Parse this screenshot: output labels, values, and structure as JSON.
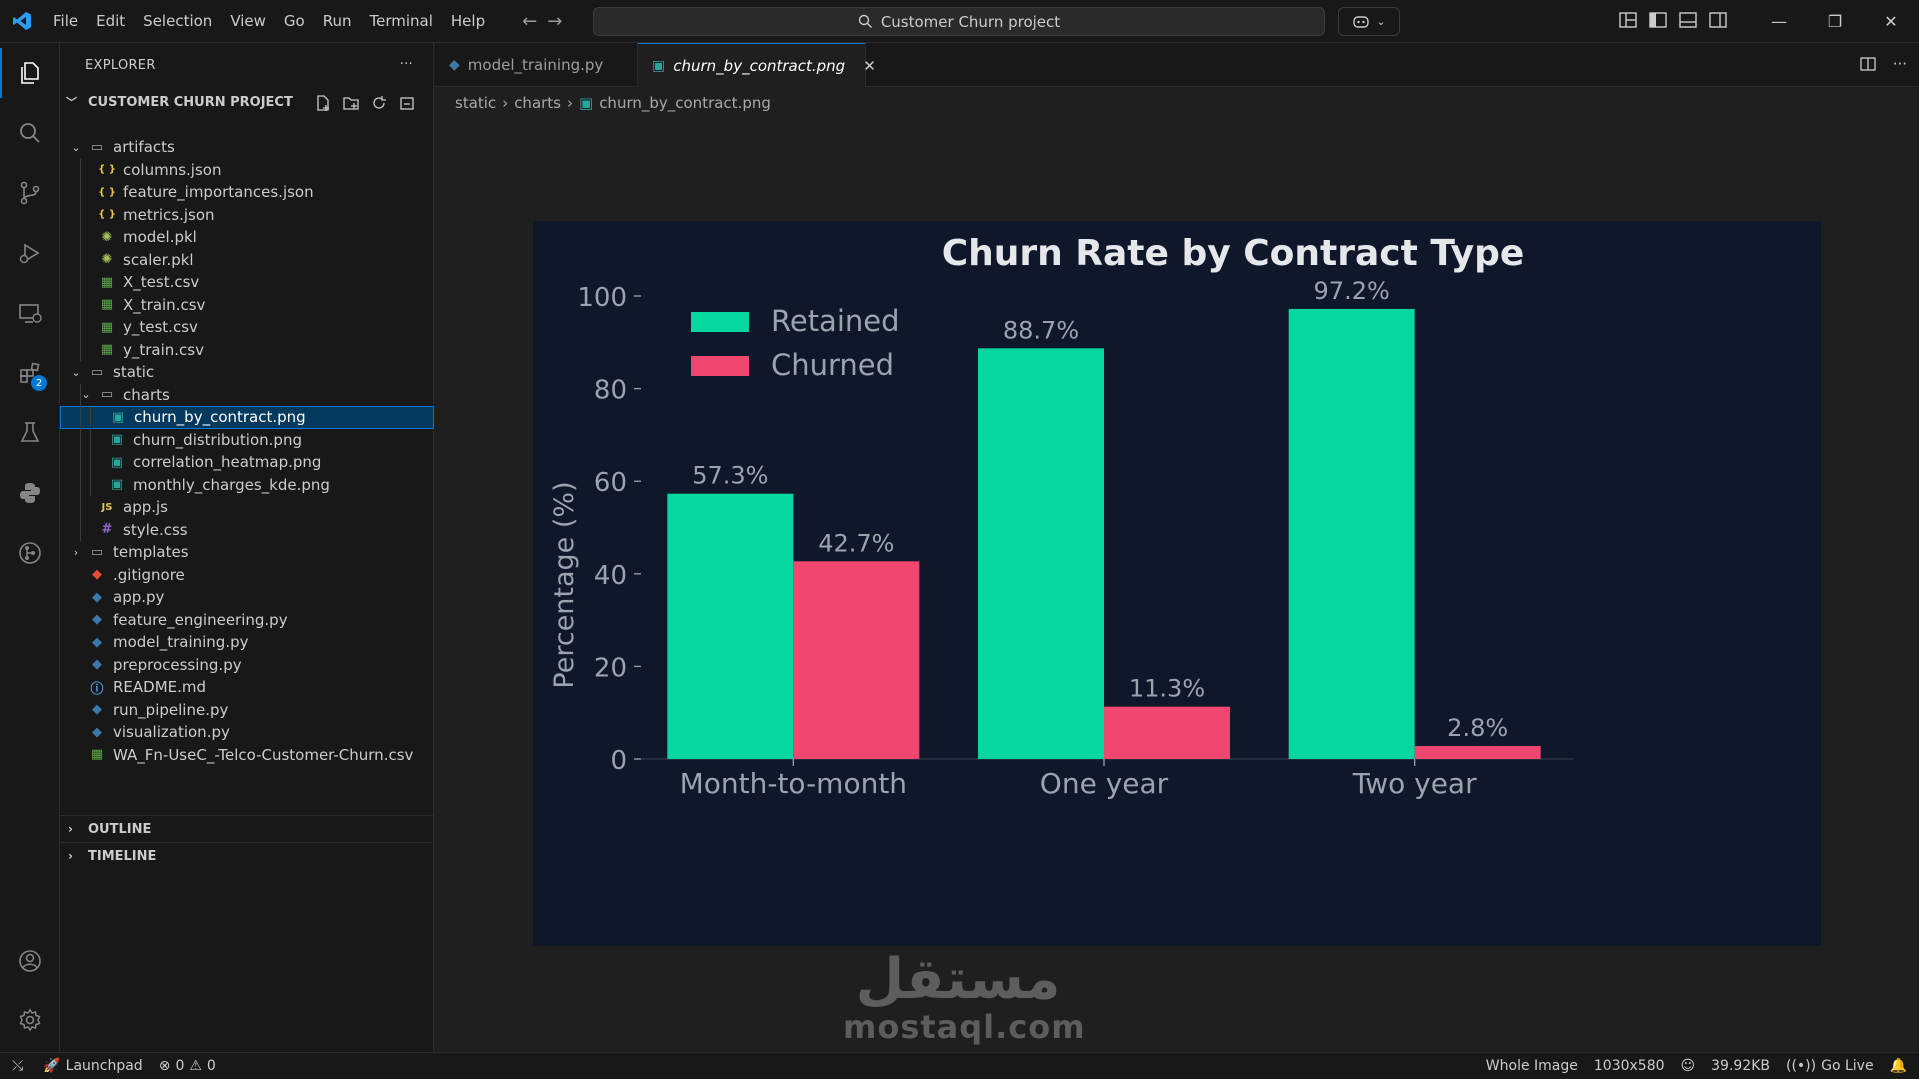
{
  "menu": [
    "File",
    "Edit",
    "Selection",
    "View",
    "Go",
    "Run",
    "Terminal",
    "Help"
  ],
  "search": {
    "text": "Customer Churn project"
  },
  "explorer": {
    "title": "EXPLORER",
    "project": "CUSTOMER CHURN PROJECT",
    "items": [
      {
        "label": "artifacts",
        "kind": "folder-open",
        "depth": 1
      },
      {
        "label": "columns.json",
        "kind": "json",
        "depth": 2
      },
      {
        "label": "feature_importances.json",
        "kind": "json",
        "depth": 2
      },
      {
        "label": "metrics.json",
        "kind": "json",
        "depth": 2
      },
      {
        "label": "model.pkl",
        "kind": "pkl",
        "depth": 2
      },
      {
        "label": "scaler.pkl",
        "kind": "pkl",
        "depth": 2
      },
      {
        "label": "X_test.csv",
        "kind": "csv",
        "depth": 2
      },
      {
        "label": "X_train.csv",
        "kind": "csv",
        "depth": 2
      },
      {
        "label": "y_test.csv",
        "kind": "csv",
        "depth": 2
      },
      {
        "label": "y_train.csv",
        "kind": "csv",
        "depth": 2
      },
      {
        "label": "static",
        "kind": "folder-open",
        "depth": 1
      },
      {
        "label": "charts",
        "kind": "folder-open",
        "depth": 2
      },
      {
        "label": "churn_by_contract.png",
        "kind": "png",
        "depth": 3,
        "selected": true
      },
      {
        "label": "churn_distribution.png",
        "kind": "png",
        "depth": 3
      },
      {
        "label": "correlation_heatmap.png",
        "kind": "png",
        "depth": 3
      },
      {
        "label": "monthly_charges_kde.png",
        "kind": "png",
        "depth": 3
      },
      {
        "label": "app.js",
        "kind": "js",
        "depth": 2
      },
      {
        "label": "style.css",
        "kind": "css",
        "depth": 2
      },
      {
        "label": "templates",
        "kind": "folder-closed",
        "depth": 1
      },
      {
        "label": ".gitignore",
        "kind": "git",
        "depth": 1
      },
      {
        "label": "app.py",
        "kind": "py",
        "depth": 1
      },
      {
        "label": "feature_engineering.py",
        "kind": "py",
        "depth": 1
      },
      {
        "label": "model_training.py",
        "kind": "py",
        "depth": 1
      },
      {
        "label": "preprocessing.py",
        "kind": "py",
        "depth": 1
      },
      {
        "label": "README.md",
        "kind": "info",
        "depth": 1
      },
      {
        "label": "run_pipeline.py",
        "kind": "py",
        "depth": 1
      },
      {
        "label": "visualization.py",
        "kind": "py",
        "depth": 1
      },
      {
        "label": "WA_Fn-UseC_-Telco-Customer-Churn.csv",
        "kind": "csv",
        "depth": 1
      }
    ],
    "outline": "OUTLINE",
    "timeline": "TIMELINE"
  },
  "activity": {
    "extensions_badge": "2"
  },
  "tabs": [
    {
      "label": "model_training.py",
      "active": false
    },
    {
      "label": "churn_by_contract.png",
      "active": true
    }
  ],
  "breadcrumb": [
    "static",
    "charts",
    "churn_by_contract.png"
  ],
  "chart_data": {
    "type": "bar",
    "title": "Churn Rate by Contract Type",
    "xlabel": "",
    "ylabel": "Percentage (%)",
    "categories": [
      "Month-to-month",
      "One year",
      "Two year"
    ],
    "series": [
      {
        "name": "Retained",
        "values": [
          57.3,
          88.7,
          97.2
        ],
        "color": "#06d6a0"
      },
      {
        "name": "Churned",
        "values": [
          42.7,
          11.3,
          2.8
        ],
        "color": "#ef476f"
      }
    ],
    "data_labels": {
      "Retained": [
        "57.3%",
        "88.7%",
        "97.2%"
      ],
      "Churned": [
        "42.7%",
        "11.3%",
        "2.8%"
      ]
    },
    "yticks": [
      "0",
      "20",
      "40",
      "60",
      "80",
      "100"
    ],
    "ylim": [
      0,
      100
    ],
    "legend": "top-left",
    "grid": false,
    "background": "#0f172a"
  },
  "watermark": {
    "arabic": "مستقل",
    "latin": "mostaql.com"
  },
  "statusbar": {
    "launchpad": "Launchpad",
    "errors": "0",
    "warnings": "0",
    "view_mode": "Whole Image",
    "dimensions": "1030x580",
    "filesize": "39.92KB",
    "golive": "Go Live"
  }
}
